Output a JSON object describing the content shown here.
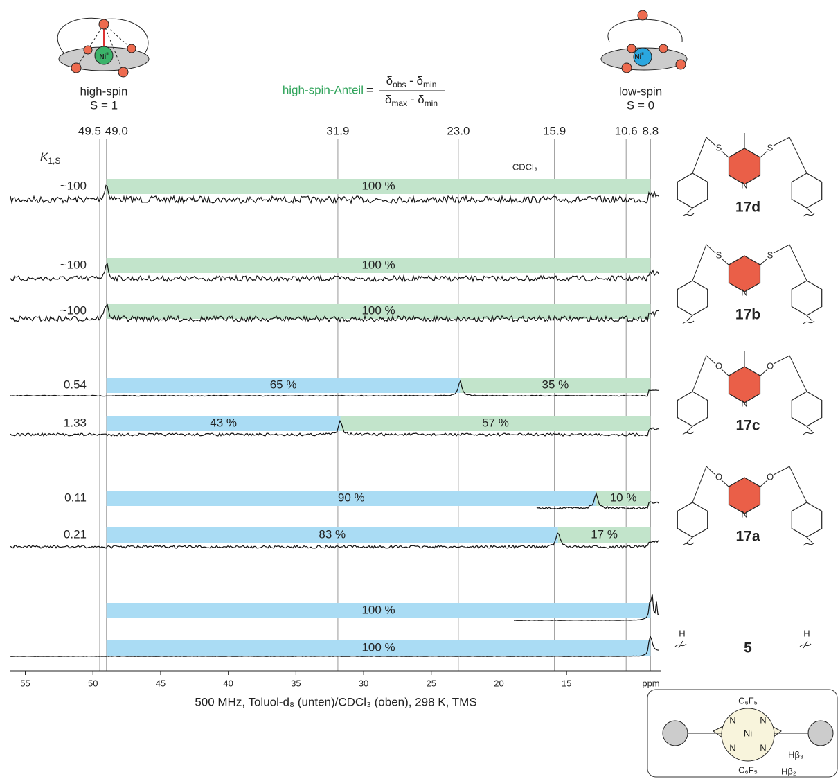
{
  "chart_data": {
    "type": "nmr-stack",
    "xlabel": "500 MHz, Toluol-d₈ (unten)/CDCl₃ (oben), 298 K, TMS",
    "xunit": "ppm",
    "xlim": [
      56.1,
      8.0
    ],
    "xticks": [
      55,
      50,
      45,
      40,
      35,
      30,
      25,
      20,
      15
    ],
    "reference_lines": [
      49.5,
      {
        "value": 49.0,
        "label": "49.0"
      },
      31.9,
      {
        "value": 23.0,
        "label": "23.0"
      },
      15.9,
      10.6,
      8.8
    ],
    "low_spin_color": "#aadcf4",
    "high_spin_color": "#c2e4cb",
    "k_header": "K",
    "k_header_sub": "1,S",
    "annotation": "CDCl₃",
    "formula": {
      "label": "high-spin-Anteil",
      "equals": "=",
      "numerator": [
        "δ",
        "obs",
        " - δ",
        "min"
      ],
      "denominator": [
        "δ",
        "max",
        " - δ",
        "min"
      ]
    },
    "spin_states": [
      {
        "label": "high-spin",
        "spin": "S = 1",
        "metal": "Ni",
        "ox": "II"
      },
      {
        "label": "low-spin",
        "spin": "S = 0",
        "metal": "Ni",
        "ox": "II"
      }
    ],
    "spectra": [
      {
        "k": "~100",
        "values": [
          null,
          100
        ],
        "value_labels": [
          null,
          "100 %"
        ]
      },
      {
        "k": "~100",
        "values": [
          null,
          100
        ],
        "value_labels": [
          null,
          "100 %"
        ]
      },
      {
        "k": "~100",
        "values": [
          null,
          100
        ],
        "value_labels": [
          null,
          "100 %"
        ]
      },
      {
        "k": 0.54,
        "values": [
          65,
          35
        ],
        "value_labels": [
          "65 %",
          "35 %"
        ]
      },
      {
        "k": 1.33,
        "values": [
          43,
          57
        ],
        "value_labels": [
          "43 %",
          "57 %"
        ]
      },
      {
        "k": 0.11,
        "values": [
          90,
          10
        ],
        "value_labels": [
          "90 %",
          "10 %"
        ]
      },
      {
        "k": 0.21,
        "values": [
          83,
          17
        ],
        "value_labels": [
          "83 %",
          "17 %"
        ]
      },
      {
        "k": null,
        "values": [
          100,
          null
        ],
        "value_labels": [
          "100 %",
          null
        ]
      },
      {
        "k": null,
        "values": [
          100,
          null
        ],
        "value_labels": [
          "100 %",
          null
        ]
      }
    ],
    "compounds": [
      {
        "name": "17d",
        "atoms": [
          "S",
          "S",
          "N"
        ]
      },
      {
        "name": "17b",
        "atoms": [
          "S",
          "S",
          "N"
        ]
      },
      {
        "name": "17c",
        "atoms": [
          "O",
          "O",
          "N"
        ]
      },
      {
        "name": "17a",
        "atoms": [
          "O",
          "O",
          "N"
        ]
      },
      {
        "name": "5",
        "atoms": [
          "H",
          "H"
        ]
      }
    ],
    "inset": {
      "top": "C₆F₅",
      "bottom": "C₆F₅",
      "metal": "Ni",
      "nitrogen": [
        "N",
        "N",
        "N",
        "N"
      ],
      "h_beta3": "Hβ₃",
      "h_beta2": "Hβ₂"
    }
  }
}
